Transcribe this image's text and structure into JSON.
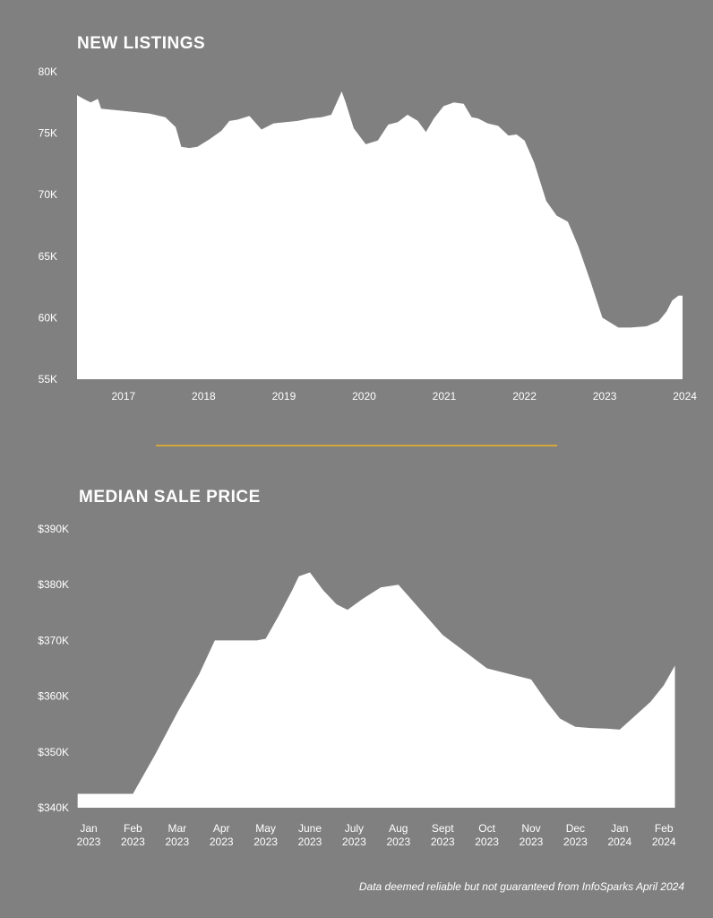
{
  "colors": {
    "background": "#808080",
    "area": "#ffffff",
    "divider": "#d4a83a"
  },
  "footer": "Data deemed reliable but not guaranteed from InfoSparks April 2024",
  "chart_data": [
    {
      "type": "area",
      "title": "NEW LISTINGS",
      "xlabel": "",
      "ylabel": "",
      "ylim": [
        55000,
        80000
      ],
      "xlim": [
        2016.7,
        2024.25
      ],
      "y_ticks": [
        {
          "value": 80000,
          "label": "80K"
        },
        {
          "value": 75000,
          "label": "75K"
        },
        {
          "value": 70000,
          "label": "70K"
        },
        {
          "value": 65000,
          "label": "65K"
        },
        {
          "value": 60000,
          "label": "60K"
        },
        {
          "value": 55000,
          "label": "55K"
        }
      ],
      "x_ticks": [
        {
          "value": 2017,
          "label": "2017"
        },
        {
          "value": 2018,
          "label": "2018"
        },
        {
          "value": 2019,
          "label": "2019"
        },
        {
          "value": 2020,
          "label": "2020"
        },
        {
          "value": 2021,
          "label": "2021"
        },
        {
          "value": 2022,
          "label": "2022"
        },
        {
          "value": 2023,
          "label": "2023"
        },
        {
          "value": 2024,
          "label": "2024"
        }
      ],
      "grid": false,
      "series": [
        {
          "x": [
            2016.7,
            2016.78,
            2016.87,
            2016.96,
            2017.0,
            2017.3,
            2017.6,
            2017.8,
            2017.93,
            2018.0,
            2018.1,
            2018.2,
            2018.35,
            2018.5,
            2018.6,
            2018.7,
            2018.85,
            2019.0,
            2019.15,
            2019.3,
            2019.45,
            2019.6,
            2019.75,
            2019.87,
            2020.0,
            2020.05,
            2020.15,
            2020.3,
            2020.45,
            2020.58,
            2020.7,
            2020.82,
            2020.95,
            2021.05,
            2021.15,
            2021.27,
            2021.4,
            2021.52,
            2021.62,
            2021.7,
            2021.82,
            2021.95,
            2022.08,
            2022.18,
            2022.28,
            2022.4,
            2022.55,
            2022.68,
            2022.82,
            2022.95,
            2023.1,
            2023.25,
            2023.45,
            2023.6,
            2023.8,
            2023.95,
            2024.05,
            2024.12,
            2024.2,
            2024.25
          ],
          "values": [
            78100,
            77800,
            77500,
            77800,
            77000,
            76800,
            76600,
            76300,
            75500,
            73900,
            73800,
            73900,
            74500,
            75200,
            76000,
            76100,
            76400,
            75300,
            75800,
            75900,
            76000,
            76200,
            76300,
            76500,
            78400,
            77500,
            75400,
            74100,
            74400,
            75700,
            75900,
            76500,
            76000,
            75100,
            76200,
            77200,
            77500,
            77400,
            76300,
            76200,
            75800,
            75600,
            74800,
            74900,
            74400,
            72600,
            69500,
            68300,
            67800,
            65800,
            63000,
            60000,
            59200,
            59200,
            59300,
            59700,
            60500,
            61400,
            61800,
            61800
          ]
        }
      ]
    },
    {
      "type": "area",
      "title": "MEDIAN SALE PRICE",
      "xlabel": "",
      "ylabel": "",
      "ylim": [
        340000,
        390000
      ],
      "y_ticks": [
        {
          "value": 390000,
          "label": "$390K"
        },
        {
          "value": 380000,
          "label": "$380K"
        },
        {
          "value": 370000,
          "label": "$370K"
        },
        {
          "value": 360000,
          "label": "$360K"
        },
        {
          "value": 350000,
          "label": "$350K"
        },
        {
          "value": 340000,
          "label": "$340K"
        }
      ],
      "categories": [
        "Jan 2023",
        "Feb 2023",
        "Mar 2023",
        "Apr 2023",
        "May 2023",
        "June 2023",
        "July 2023",
        "Aug 2023",
        "Sept 2023",
        "Oct 2023",
        "Nov 2023",
        "Dec 2023",
        "Jan 2024",
        "Feb 2024"
      ],
      "x_tick_lines": [
        [
          "Jan",
          "2023"
        ],
        [
          "Feb",
          "2023"
        ],
        [
          "Mar",
          "2023"
        ],
        [
          "Apr",
          "2023"
        ],
        [
          "May",
          "2023"
        ],
        [
          "June",
          "2023"
        ],
        [
          "July",
          "2023"
        ],
        [
          "Aug",
          "2023"
        ],
        [
          "Sept",
          "2023"
        ],
        [
          "Oct",
          "2023"
        ],
        [
          "Nov",
          "2023"
        ],
        [
          "Dec",
          "2023"
        ],
        [
          "Jan",
          "2024"
        ],
        [
          "Feb",
          "2024"
        ]
      ],
      "grid": false,
      "series": [
        {
          "x": [
            -0.25,
            0.0,
            0.5,
            1.0,
            1.5,
            2.0,
            2.5,
            2.85,
            3.1,
            3.5,
            3.8,
            4.0,
            4.3,
            4.6,
            4.75,
            5.0,
            5.3,
            5.6,
            5.85,
            6.2,
            6.6,
            7.0,
            7.5,
            8.0,
            8.5,
            9.0,
            9.5,
            10.0,
            10.35,
            10.65,
            11.0,
            11.35,
            11.7,
            12.0,
            12.35,
            12.7,
            13.0,
            13.25
          ],
          "values": [
            342500,
            342500,
            342500,
            342500,
            349500,
            357000,
            364000,
            370000,
            370000,
            370000,
            370000,
            370300,
            374500,
            379000,
            381500,
            382200,
            379000,
            376500,
            375500,
            377500,
            379500,
            380000,
            375500,
            371000,
            368000,
            365000,
            364000,
            363000,
            359000,
            356000,
            354500,
            354300,
            354200,
            354000,
            356500,
            359000,
            362000,
            365500
          ]
        }
      ]
    }
  ]
}
